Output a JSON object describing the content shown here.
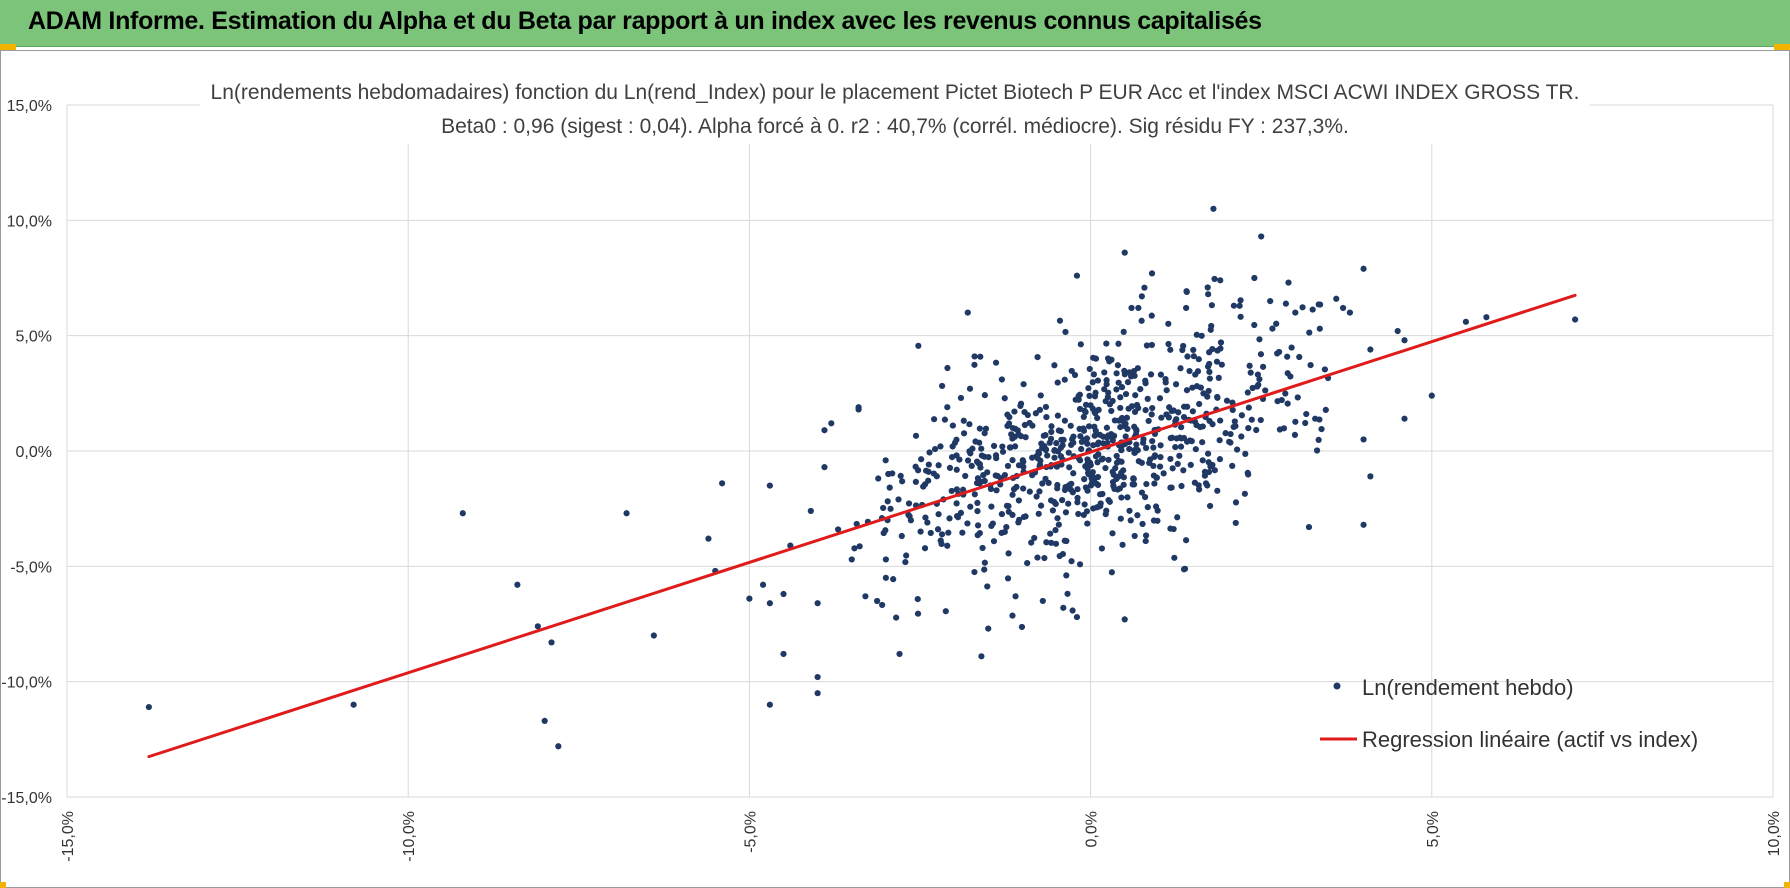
{
  "banner": {
    "title": "ADAM Informe. Estimation du Alpha et du Beta par rapport à un index avec les revenus connus capitalisés"
  },
  "colors": {
    "banner_bg": "#7cc47a",
    "accent_corner": "#f2b400",
    "point": "#203864",
    "regression": "#e01b1b",
    "grid": "#d9d9d9"
  },
  "chart_data": {
    "type": "scatter",
    "title_lines": [
      "Ln(rendements hebdomadaires) fonction du Ln(rend_Index) pour le placement Pictet Biotech P EUR Acc et l'index MSCI  ACWI INDEX GROSS TR.",
      "Beta0 : 0,96  (sigest : 0,04).  Alpha forcé à 0. r2 : 40,7% (corrél. médiocre). Sig résidu FY : 237,3%."
    ],
    "xlim": [
      -0.15,
      0.1
    ],
    "ylim": [
      -0.15,
      0.15
    ],
    "x_ticks": [
      -0.15,
      -0.1,
      -0.05,
      0.0,
      0.05,
      0.1
    ],
    "x_tick_labels": [
      "-15,0%",
      "-10,0%",
      "-5,0%",
      "0,0%",
      "5,0%",
      "10,0%"
    ],
    "y_ticks": [
      0.15,
      0.1,
      0.05,
      0.0,
      -0.05,
      -0.1,
      -0.15
    ],
    "y_tick_labels": [
      "15,0%",
      "10,0%",
      "5,0%",
      "0,0%",
      "-5,0%",
      "-10,0%",
      "-15,0%"
    ],
    "grid": true,
    "legend_position": "bottom-right",
    "series": [
      {
        "name": "Ln(rendement hebdo)",
        "kind": "scatter",
        "points_explicit": [
          [
            -0.138,
            -0.111
          ],
          [
            -0.108,
            -0.11
          ],
          [
            -0.092,
            -0.027
          ],
          [
            -0.084,
            -0.058
          ],
          [
            -0.081,
            -0.076
          ],
          [
            -0.079,
            -0.083
          ],
          [
            -0.08,
            -0.117
          ],
          [
            -0.078,
            -0.128
          ],
          [
            -0.068,
            -0.027
          ],
          [
            -0.064,
            -0.08
          ],
          [
            -0.056,
            -0.038
          ],
          [
            -0.055,
            -0.052
          ],
          [
            -0.054,
            -0.014
          ],
          [
            -0.05,
            -0.064
          ],
          [
            -0.048,
            -0.058
          ],
          [
            -0.047,
            -0.066
          ],
          [
            -0.047,
            -0.015
          ],
          [
            -0.047,
            -0.11
          ],
          [
            -0.045,
            -0.088
          ],
          [
            -0.045,
            -0.062
          ],
          [
            -0.044,
            -0.041
          ],
          [
            -0.041,
            -0.026
          ],
          [
            -0.04,
            -0.098
          ],
          [
            -0.04,
            -0.105
          ],
          [
            -0.04,
            -0.066
          ],
          [
            -0.039,
            0.009
          ],
          [
            -0.038,
            0.012
          ],
          [
            -0.039,
            -0.007
          ],
          [
            -0.037,
            -0.034
          ],
          [
            -0.035,
            -0.047
          ],
          [
            -0.034,
            0.018
          ],
          [
            -0.034,
            0.019
          ],
          [
            -0.033,
            -0.063
          ],
          [
            -0.03,
            -0.055
          ],
          [
            -0.03,
            -0.047
          ],
          [
            -0.028,
            -0.088
          ],
          [
            -0.022,
            0.002
          ],
          [
            -0.021,
            0.019
          ],
          [
            -0.019,
            0.023
          ],
          [
            -0.018,
            0.06
          ],
          [
            -0.017,
            0.041
          ],
          [
            -0.016,
            -0.089
          ],
          [
            -0.015,
            -0.077
          ],
          [
            -0.013,
            0.031
          ],
          [
            -0.011,
            -0.063
          ],
          [
            -0.007,
            -0.065
          ],
          [
            -0.004,
            -0.068
          ],
          [
            -0.002,
            -0.072
          ],
          [
            0.005,
            -0.073
          ],
          [
            -0.002,
            0.076
          ],
          [
            0.005,
            0.086
          ],
          [
            0.006,
            0.062
          ],
          [
            0.007,
            0.062
          ],
          [
            0.009,
            0.077
          ],
          [
            0.014,
            0.062
          ],
          [
            0.018,
            0.105
          ],
          [
            0.019,
            0.074
          ],
          [
            0.024,
            0.075
          ],
          [
            0.025,
            0.093
          ],
          [
            0.021,
            0.063
          ],
          [
            0.029,
            0.073
          ],
          [
            0.03,
            0.06
          ],
          [
            0.036,
            0.066
          ],
          [
            0.037,
            0.062
          ],
          [
            0.038,
            0.06
          ],
          [
            0.04,
            0.079
          ],
          [
            0.041,
            0.044
          ],
          [
            0.04,
            0.005
          ],
          [
            0.041,
            -0.011
          ],
          [
            0.04,
            -0.032
          ],
          [
            0.045,
            0.052
          ],
          [
            0.046,
            0.048
          ],
          [
            0.046,
            0.014
          ],
          [
            0.05,
            0.024
          ],
          [
            0.055,
            0.056
          ],
          [
            0.058,
            0.058
          ],
          [
            0.071,
            0.057
          ],
          [
            0.032,
            -0.033
          ]
        ],
        "cloud": {
          "count": 780,
          "x_mean": 0.002,
          "x_sd": 0.017,
          "beta": 0.96,
          "resid_sd": 0.022,
          "seed": 20240517
        }
      },
      {
        "name": "Regression linéaire (actif vs index)",
        "kind": "line",
        "points": [
          [
            -0.138,
            -0.1325
          ],
          [
            0.071,
            0.0675
          ]
        ]
      }
    ]
  }
}
